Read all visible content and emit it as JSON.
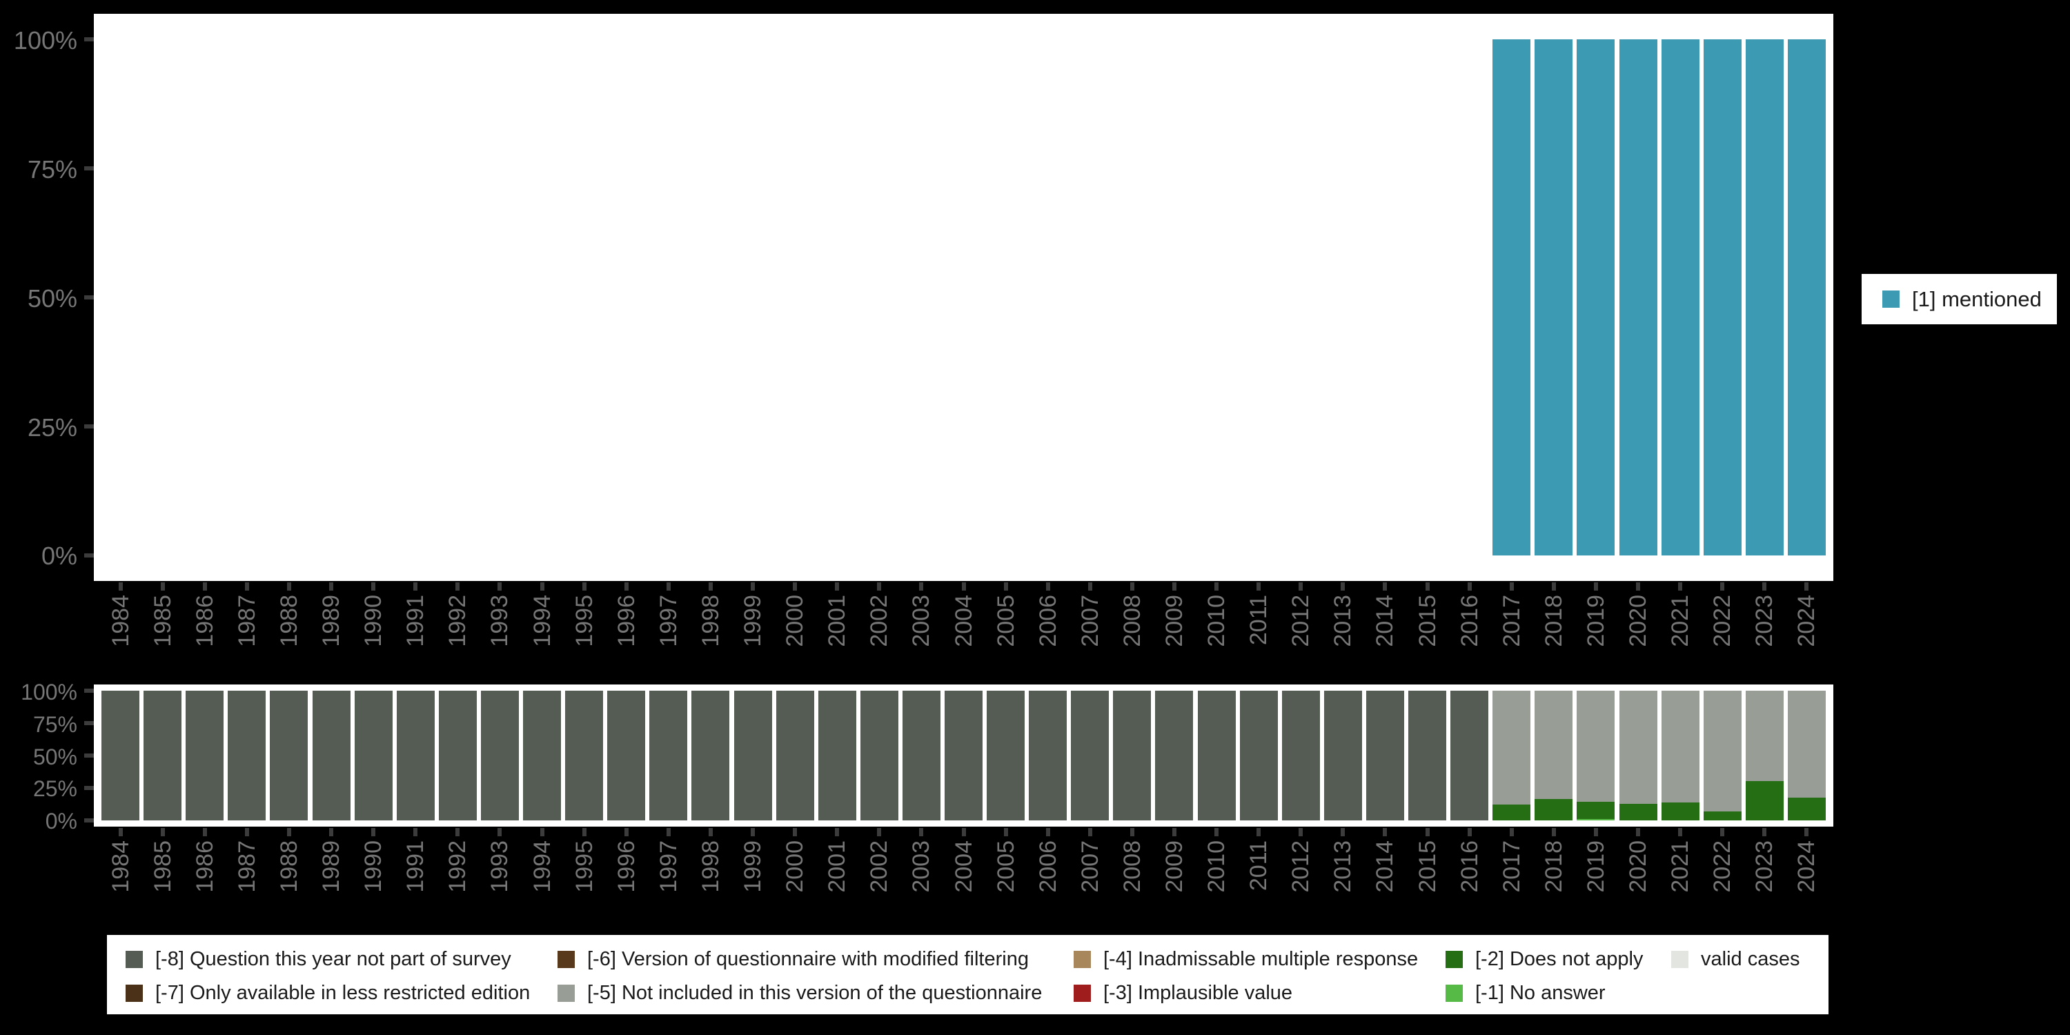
{
  "colors": {
    "background": "#000000",
    "plot_background": "#ffffff",
    "axis_text": "#767676",
    "tick": "#3c3c3c",
    "mentioned": "#3C9AB3",
    "minus8": "#555C53",
    "minus7": "#4A3118",
    "minus6": "#59391C",
    "minus5": "#989E96",
    "minus4": "#A8875D",
    "minus3": "#A01D1D",
    "minus2": "#256E14",
    "minus1": "#56BA47",
    "valid_cases": "#E3E6E0"
  },
  "y_axis": {
    "tick_labels": [
      "100%",
      "75%",
      "50%",
      "25%",
      "0%"
    ]
  },
  "years": [
    "1984",
    "1985",
    "1986",
    "1987",
    "1988",
    "1989",
    "1990",
    "1991",
    "1992",
    "1993",
    "1994",
    "1995",
    "1996",
    "1997",
    "1998",
    "1999",
    "2000",
    "2001",
    "2002",
    "2003",
    "2004",
    "2005",
    "2006",
    "2007",
    "2008",
    "2009",
    "2010",
    "2011",
    "2012",
    "2013",
    "2014",
    "2015",
    "2016",
    "2017",
    "2018",
    "2019",
    "2020",
    "2021",
    "2022",
    "2023",
    "2024"
  ],
  "top_legend": {
    "items": [
      {
        "label": "[1] mentioned",
        "color": "#3C9AB3"
      }
    ]
  },
  "bottom_legend": {
    "columns": [
      [
        {
          "label": "[-8] Question this year not part of survey",
          "color": "#555C53"
        },
        {
          "label": "[-7] Only available in less restricted edition",
          "color": "#4A3118"
        }
      ],
      [
        {
          "label": "[-6] Version of questionnaire with modified filtering",
          "color": "#59391C"
        },
        {
          "label": "[-5] Not included in this version of the questionnaire",
          "color": "#989E96"
        }
      ],
      [
        {
          "label": "[-4] Inadmissable multiple response",
          "color": "#A8875D"
        },
        {
          "label": "[-3] Implausible value",
          "color": "#A01D1D"
        }
      ],
      [
        {
          "label": "[-2] Does not apply",
          "color": "#256E14"
        },
        {
          "label": "[-1] No answer",
          "color": "#56BA47"
        }
      ],
      [
        {
          "label": "valid cases",
          "color": "#E3E6E0"
        }
      ]
    ]
  },
  "chart_data": [
    {
      "type": "bar",
      "stacked": true,
      "unit": "percent",
      "title": "",
      "xlabel": "",
      "ylabel": "",
      "ylim": [
        0,
        100
      ],
      "yticks": [
        100,
        75,
        50,
        25,
        0
      ],
      "grid": false,
      "legend_position": "right",
      "x_tick_rotation": 90,
      "categories": [
        "1984",
        "1985",
        "1986",
        "1987",
        "1988",
        "1989",
        "1990",
        "1991",
        "1992",
        "1993",
        "1994",
        "1995",
        "1996",
        "1997",
        "1998",
        "1999",
        "2000",
        "2001",
        "2002",
        "2003",
        "2004",
        "2005",
        "2006",
        "2007",
        "2008",
        "2009",
        "2010",
        "2011",
        "2012",
        "2013",
        "2014",
        "2015",
        "2016",
        "2017",
        "2018",
        "2019",
        "2020",
        "2021",
        "2022",
        "2023",
        "2024"
      ],
      "series": [
        {
          "name": "[1] mentioned",
          "color": "#3C9AB3",
          "values": [
            0,
            0,
            0,
            0,
            0,
            0,
            0,
            0,
            0,
            0,
            0,
            0,
            0,
            0,
            0,
            0,
            0,
            0,
            0,
            0,
            0,
            0,
            0,
            0,
            0,
            0,
            0,
            0,
            0,
            0,
            0,
            0,
            0,
            100,
            100,
            100,
            100,
            100,
            100,
            100,
            100
          ]
        }
      ]
    },
    {
      "type": "bar",
      "stacked": true,
      "unit": "percent",
      "title": "",
      "xlabel": "",
      "ylabel": "",
      "ylim": [
        0,
        100
      ],
      "yticks": [
        100,
        75,
        50,
        25,
        0
      ],
      "grid": false,
      "legend_position": "bottom",
      "x_tick_rotation": 90,
      "categories": [
        "1984",
        "1985",
        "1986",
        "1987",
        "1988",
        "1989",
        "1990",
        "1991",
        "1992",
        "1993",
        "1994",
        "1995",
        "1996",
        "1997",
        "1998",
        "1999",
        "2000",
        "2001",
        "2002",
        "2003",
        "2004",
        "2005",
        "2006",
        "2007",
        "2008",
        "2009",
        "2010",
        "2011",
        "2012",
        "2013",
        "2014",
        "2015",
        "2016",
        "2017",
        "2018",
        "2019",
        "2020",
        "2021",
        "2022",
        "2023",
        "2024"
      ],
      "series": [
        {
          "name": "[-1] No answer",
          "color": "#56BA47",
          "values": [
            0,
            0,
            0,
            0,
            0,
            0,
            0,
            0,
            0,
            0,
            0,
            0,
            0,
            0,
            0,
            0,
            0,
            0,
            0,
            0,
            0,
            0,
            0,
            0,
            0,
            0,
            0,
            0,
            0,
            0,
            0,
            0,
            0,
            0,
            0,
            1,
            0,
            0,
            0,
            0,
            0
          ]
        },
        {
          "name": "[-2] Does not apply",
          "color": "#256E14",
          "values": [
            0,
            0,
            0,
            0,
            0,
            0,
            0,
            0,
            0,
            0,
            0,
            0,
            0,
            0,
            0,
            0,
            0,
            0,
            0,
            0,
            0,
            0,
            0,
            0,
            0,
            0,
            0,
            0,
            0,
            0,
            0,
            0,
            0,
            12,
            16.5,
            13,
            12.5,
            13.5,
            7,
            30,
            17.5
          ]
        },
        {
          "name": "[-5] Not included in this version of the questionnaire",
          "color": "#989E96",
          "values": [
            0,
            0,
            0,
            0,
            0,
            0,
            0,
            0,
            0,
            0,
            0,
            0,
            0,
            0,
            0,
            0,
            0,
            0,
            0,
            0,
            0,
            0,
            0,
            0,
            0,
            0,
            0,
            0,
            0,
            0,
            0,
            0,
            0,
            88,
            83.5,
            86,
            87.5,
            86.5,
            93,
            70,
            82.5
          ]
        },
        {
          "name": "[-8] Question this year not part of survey",
          "color": "#555C53",
          "values": [
            100,
            100,
            100,
            100,
            100,
            100,
            100,
            100,
            100,
            100,
            100,
            100,
            100,
            100,
            100,
            100,
            100,
            100,
            100,
            100,
            100,
            100,
            100,
            100,
            100,
            100,
            100,
            100,
            100,
            100,
            100,
            100,
            100,
            0,
            0,
            0,
            0,
            0,
            0,
            0,
            0
          ]
        }
      ]
    }
  ]
}
